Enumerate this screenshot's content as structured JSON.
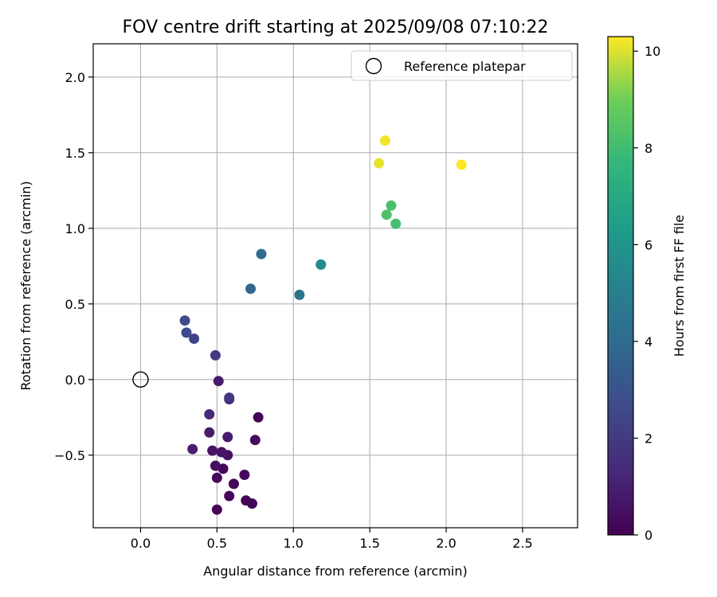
{
  "chart_data": {
    "type": "scatter",
    "title": "FOV centre drift starting at 2025/09/08 07:10:22",
    "xlabel": "Angular distance from reference (arcmin)",
    "ylabel": "Rotation from reference (arcmin)",
    "xlim": [
      -0.31,
      2.86
    ],
    "ylim": [
      -0.98,
      2.22
    ],
    "xticks": [
      0.0,
      0.5,
      1.0,
      1.5,
      2.0,
      2.5
    ],
    "xtick_labels": [
      "0.0",
      "0.5",
      "1.0",
      "1.5",
      "2.0",
      "2.5"
    ],
    "yticks": [
      -0.5,
      0.0,
      0.5,
      1.0,
      1.5,
      2.0
    ],
    "ytick_labels": [
      "−0.5",
      "0.0",
      "0.5",
      "1.0",
      "1.5",
      "2.0"
    ],
    "grid": true,
    "legend": {
      "placement": "top-right",
      "entries": [
        "Reference platepar"
      ]
    },
    "reference": {
      "name": "Reference platepar",
      "x": 0.0,
      "y": 0.0
    },
    "colorbar": {
      "label": "Hours from first FF file",
      "colormap": "viridis",
      "range": [
        0,
        10.3
      ],
      "ticks": [
        0,
        2,
        4,
        6,
        8,
        10
      ],
      "tick_labels": [
        "0",
        "2",
        "4",
        "6",
        "8",
        "10"
      ]
    },
    "points": [
      {
        "x": 0.5,
        "y": -0.86,
        "hours": 0.1
      },
      {
        "x": 0.73,
        "y": -0.82,
        "hours": 0.1
      },
      {
        "x": 0.69,
        "y": -0.8,
        "hours": 0.1
      },
      {
        "x": 0.58,
        "y": -0.77,
        "hours": 0.2
      },
      {
        "x": 0.61,
        "y": -0.69,
        "hours": 0.1
      },
      {
        "x": 0.5,
        "y": -0.65,
        "hours": 0.3
      },
      {
        "x": 0.68,
        "y": -0.63,
        "hours": 0.2
      },
      {
        "x": 0.54,
        "y": -0.59,
        "hours": 0.2
      },
      {
        "x": 0.49,
        "y": -0.57,
        "hours": 0.5
      },
      {
        "x": 0.57,
        "y": -0.5,
        "hours": 0.5
      },
      {
        "x": 0.53,
        "y": -0.48,
        "hours": 0.6
      },
      {
        "x": 0.47,
        "y": -0.47,
        "hours": 0.6
      },
      {
        "x": 0.34,
        "y": -0.46,
        "hours": 1.0
      },
      {
        "x": 0.75,
        "y": -0.4,
        "hours": 0.3
      },
      {
        "x": 0.57,
        "y": -0.38,
        "hours": 0.9
      },
      {
        "x": 0.45,
        "y": -0.35,
        "hours": 0.9
      },
      {
        "x": 0.77,
        "y": -0.25,
        "hours": 0.1
      },
      {
        "x": 0.45,
        "y": -0.23,
        "hours": 1.4
      },
      {
        "x": 0.58,
        "y": -0.13,
        "hours": 1.2
      },
      {
        "x": 0.58,
        "y": -0.12,
        "hours": 1.9
      },
      {
        "x": 0.51,
        "y": -0.01,
        "hours": 0.9
      },
      {
        "x": 0.49,
        "y": 0.16,
        "hours": 2.0
      },
      {
        "x": 0.35,
        "y": 0.27,
        "hours": 2.4
      },
      {
        "x": 0.3,
        "y": 0.31,
        "hours": 2.6
      },
      {
        "x": 0.29,
        "y": 0.39,
        "hours": 2.6
      },
      {
        "x": 0.72,
        "y": 0.6,
        "hours": 3.8
      },
      {
        "x": 1.04,
        "y": 0.56,
        "hours": 4.4
      },
      {
        "x": 0.79,
        "y": 0.83,
        "hours": 4.1
      },
      {
        "x": 1.18,
        "y": 0.76,
        "hours": 5.2
      },
      {
        "x": 1.18,
        "y": 0.76,
        "hours": 5.6
      },
      {
        "x": 1.67,
        "y": 1.03,
        "hours": 8.1
      },
      {
        "x": 1.61,
        "y": 1.09,
        "hours": 8.3
      },
      {
        "x": 1.64,
        "y": 1.15,
        "hours": 8.2
      },
      {
        "x": 1.56,
        "y": 1.43,
        "hours": 10.1
      },
      {
        "x": 1.6,
        "y": 1.58,
        "hours": 10.2
      },
      {
        "x": 2.1,
        "y": 1.42,
        "hours": 10.3
      }
    ]
  }
}
